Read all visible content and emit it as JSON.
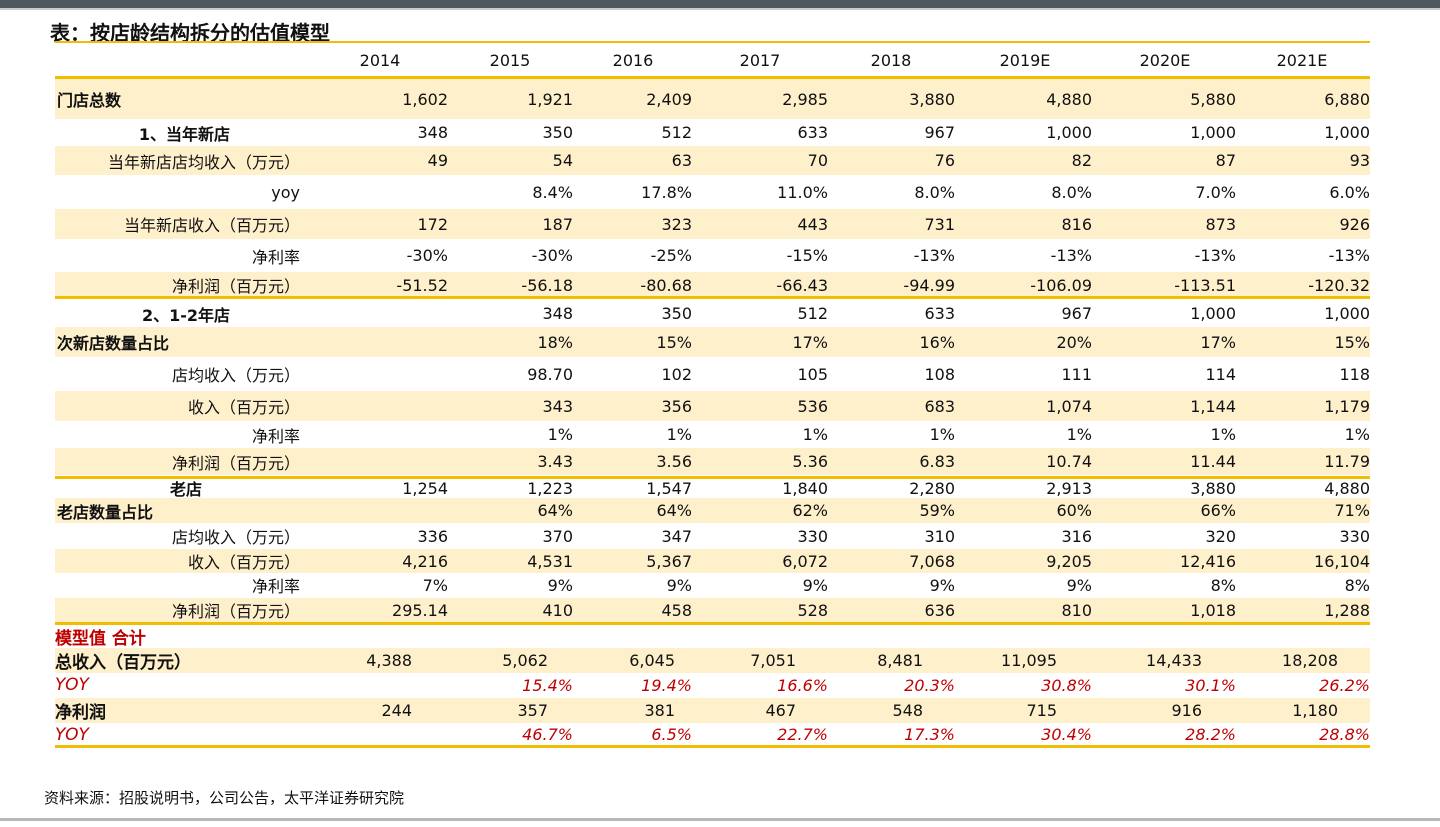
{
  "title": "表：按店龄结构拆分的估值模型",
  "columns": [
    "2014",
    "2015",
    "2016",
    "2017",
    "2018",
    "2019E",
    "2020E",
    "2021E"
  ],
  "rows": [
    {
      "label": "门店总数",
      "style": "bold-left",
      "values": [
        "1,602",
        "1,921",
        "2,409",
        "2,985",
        "3,880",
        "4,880",
        "5,880",
        "6,880"
      ]
    },
    {
      "label": "1、当年新店",
      "style": "bold",
      "values": [
        "348",
        "350",
        "512",
        "633",
        "967",
        "1,000",
        "1,000",
        "1,000"
      ]
    },
    {
      "label": "当年新店店均收入（万元）",
      "style": "normal",
      "values": [
        "49",
        "54",
        "63",
        "70",
        "76",
        "82",
        "87",
        "93"
      ]
    },
    {
      "label": "yoy",
      "style": "normal",
      "values": [
        "",
        "8.4%",
        "17.8%",
        "11.0%",
        "8.0%",
        "8.0%",
        "7.0%",
        "6.0%"
      ]
    },
    {
      "label": "当年新店收入（百万元）",
      "style": "normal",
      "values": [
        "172",
        "187",
        "323",
        "443",
        "731",
        "816",
        "873",
        "926"
      ]
    },
    {
      "label": "净利率",
      "style": "normal",
      "values": [
        "-30%",
        "-30%",
        "-25%",
        "-15%",
        "-13%",
        "-13%",
        "-13%",
        "-13%"
      ]
    },
    {
      "label": "净利润（百万元）",
      "style": "normal",
      "values": [
        "-51.52",
        "-56.18",
        "-80.68",
        "-66.43",
        "-94.99",
        "-106.09",
        "-113.51",
        "-120.32"
      ]
    },
    {
      "label": "2、1-2年店",
      "style": "bold",
      "values": [
        "",
        "348",
        "350",
        "512",
        "633",
        "967",
        "1,000",
        "1,000"
      ]
    },
    {
      "label": "次新店数量占比",
      "style": "bold-left",
      "values": [
        "",
        "18%",
        "15%",
        "17%",
        "16%",
        "20%",
        "17%",
        "15%"
      ]
    },
    {
      "label": "店均收入（万元）",
      "style": "normal",
      "values": [
        "",
        "98.70",
        "102",
        "105",
        "108",
        "111",
        "114",
        "118"
      ]
    },
    {
      "label": "收入（百万元）",
      "style": "normal",
      "values": [
        "",
        "343",
        "356",
        "536",
        "683",
        "1,074",
        "1,144",
        "1,179"
      ]
    },
    {
      "label": "净利率",
      "style": "normal",
      "values": [
        "",
        "1%",
        "1%",
        "1%",
        "1%",
        "1%",
        "1%",
        "1%"
      ]
    },
    {
      "label": "净利润（百万元）",
      "style": "normal",
      "values": [
        "",
        "3.43",
        "3.56",
        "5.36",
        "6.83",
        "10.74",
        "11.44",
        "11.79"
      ]
    },
    {
      "label": "老店",
      "style": "bold",
      "values": [
        "1,254",
        "1,223",
        "1,547",
        "1,840",
        "2,280",
        "2,913",
        "3,880",
        "4,880"
      ]
    },
    {
      "label": "老店数量占比",
      "style": "bold-left",
      "values": [
        "",
        "64%",
        "64%",
        "62%",
        "59%",
        "60%",
        "66%",
        "71%"
      ]
    },
    {
      "label": "店均收入（万元）",
      "style": "normal",
      "values": [
        "336",
        "370",
        "347",
        "330",
        "310",
        "316",
        "320",
        "330"
      ]
    },
    {
      "label": "收入（百万元）",
      "style": "normal",
      "values": [
        "4,216",
        "4,531",
        "5,367",
        "6,072",
        "7,068",
        "9,205",
        "12,416",
        "16,104"
      ]
    },
    {
      "label": "净利率",
      "style": "normal",
      "values": [
        "7%",
        "9%",
        "9%",
        "9%",
        "9%",
        "9%",
        "8%",
        "8%"
      ]
    },
    {
      "label": "净利润（百万元）",
      "style": "normal",
      "values": [
        "295.14",
        "410",
        "458",
        "528",
        "636",
        "810",
        "1,018",
        "1,288"
      ]
    }
  ],
  "summary": {
    "heading": "模型值 合计",
    "rows": [
      {
        "label": "总收入（百万元）",
        "type": "total",
        "values": [
          "4,388",
          "5,062",
          "6,045",
          "7,051",
          "8,481",
          "11,095",
          "14,433",
          "18,208"
        ]
      },
      {
        "label": "YOY",
        "type": "yoy",
        "values": [
          "",
          "15.4%",
          "19.4%",
          "16.6%",
          "20.3%",
          "30.8%",
          "30.1%",
          "26.2%"
        ]
      },
      {
        "label": "净利润",
        "type": "total",
        "values": [
          "244",
          "357",
          "381",
          "467",
          "548",
          "715",
          "916",
          "1,180"
        ]
      },
      {
        "label": "YOY",
        "type": "yoy",
        "values": [
          "",
          "46.7%",
          "6.5%",
          "22.7%",
          "17.3%",
          "30.4%",
          "28.2%",
          "28.8%"
        ]
      }
    ]
  },
  "source": "资料来源：招股说明书，公司公告，太平洋证券研究院",
  "colors": {
    "accent_rule": "#f2bd00",
    "row_shade": "#fff0cc",
    "highlight_red": "#c00000",
    "topbar": "#4f585e"
  }
}
